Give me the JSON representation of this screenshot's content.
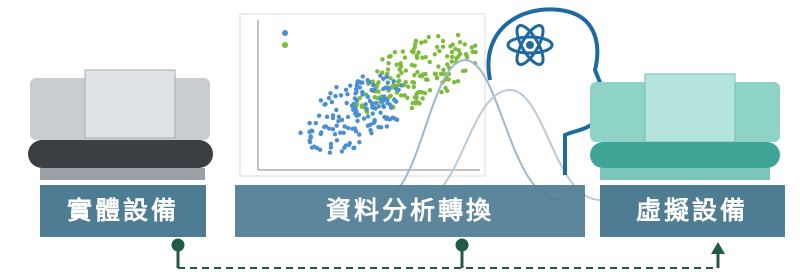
{
  "nodes": [
    {
      "label": "實體設備"
    },
    {
      "label": "資料分析轉換"
    },
    {
      "label": "虛擬設備"
    }
  ]
}
